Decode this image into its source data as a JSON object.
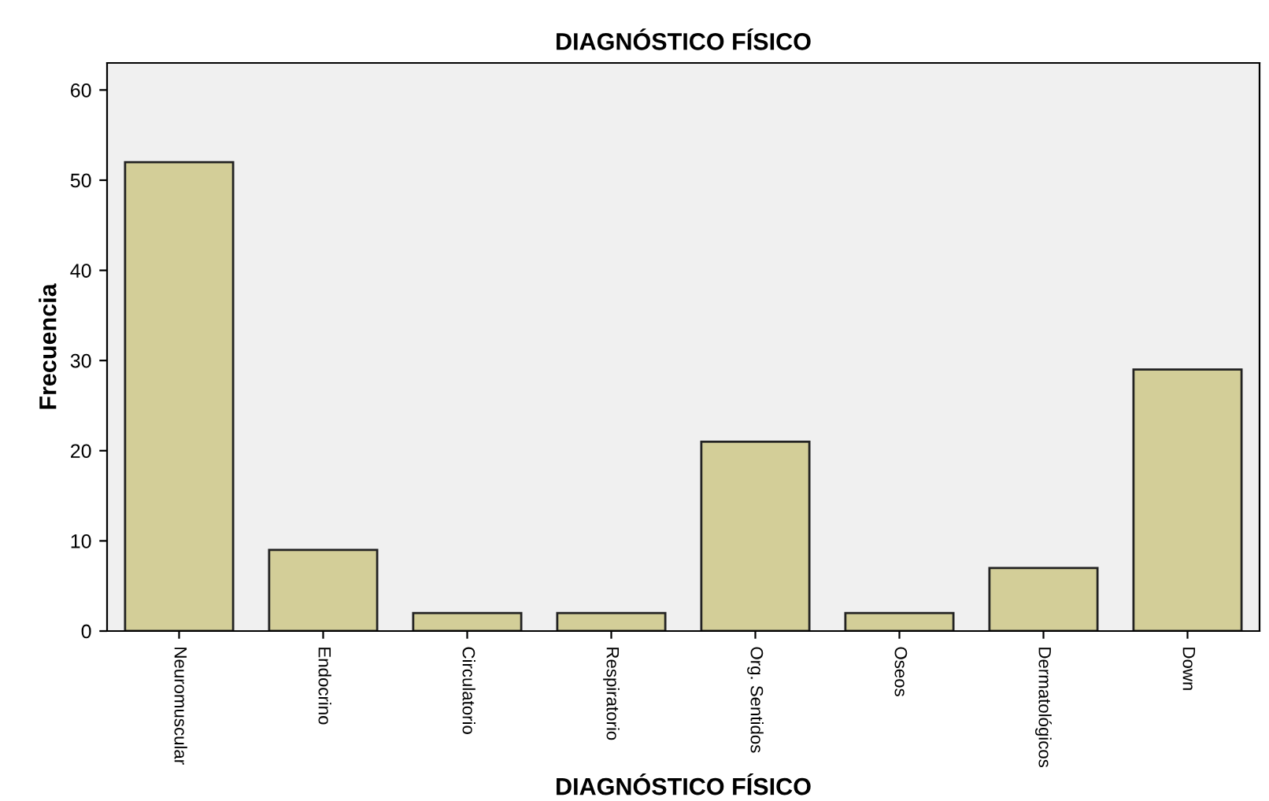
{
  "chart_data": {
    "type": "bar",
    "title": "DIAGNÓSTICO FÍSICO",
    "xlabel": "DIAGNÓSTICO FÍSICO",
    "ylabel": "Frecuencia",
    "categories": [
      "Neuromuscular",
      "Endocrino",
      "Circulatorio",
      "Respiratorio",
      "Org. Sentidos",
      "Oseos",
      "Dermatológicos",
      "Down"
    ],
    "values": [
      52,
      9,
      2,
      2,
      21,
      2,
      7,
      29
    ],
    "color": "#d3ce98",
    "ylim": [
      0,
      63
    ],
    "yticks": [
      0,
      10,
      20,
      30,
      40,
      50,
      60
    ],
    "grid": false
  }
}
